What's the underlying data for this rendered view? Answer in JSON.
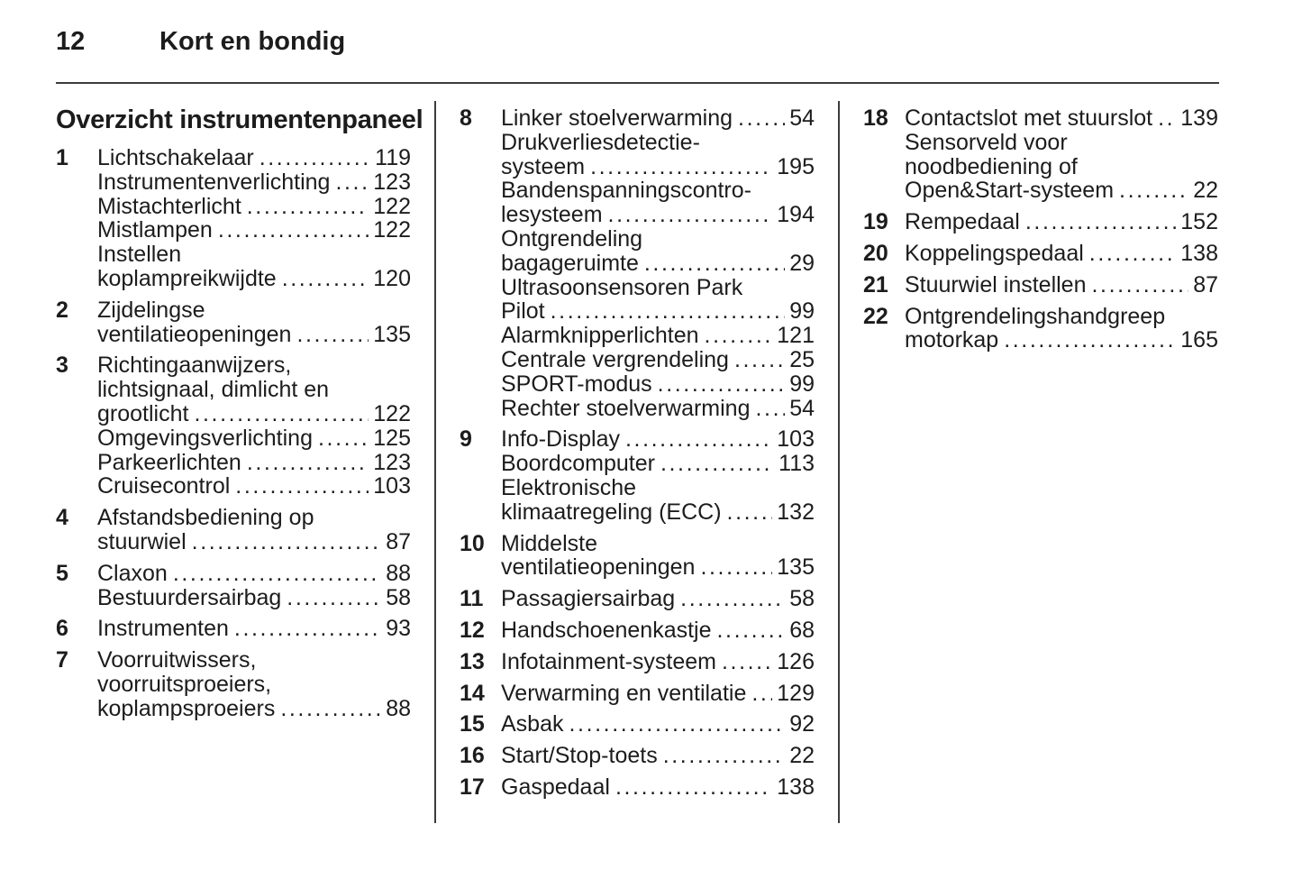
{
  "header": {
    "page_number": "12",
    "chapter_title": "Kort en bondig"
  },
  "colors": {
    "background": "#ffffff",
    "text": "#1c1c1c",
    "rule": "#3c3c3c"
  },
  "toc": {
    "heading": "Overzicht instrumentenpaneel",
    "columns": [
      {
        "items": [
          {
            "num": "1",
            "lines": [
              {
                "text": "Lichtschakelaar",
                "page": "119"
              },
              {
                "text": "Instrumentenverlichting",
                "page": "123"
              },
              {
                "text": "Mistachterlicht",
                "page": "122"
              },
              {
                "text": "Mistlampen",
                "page": "122"
              },
              {
                "text": "Instellen",
                "page": null
              },
              {
                "text": "koplampreikwijdte",
                "page": "120"
              }
            ]
          },
          {
            "num": "2",
            "lines": [
              {
                "text": "Zijdelingse",
                "page": null
              },
              {
                "text": "ventilatieopeningen",
                "page": "135"
              }
            ]
          },
          {
            "num": "3",
            "lines": [
              {
                "text": "Richtingaanwijzers,",
                "page": null
              },
              {
                "text": "lichtsignaal, dimlicht en",
                "page": null
              },
              {
                "text": "grootlicht",
                "page": "122"
              },
              {
                "text": "Omgevingsverlichting",
                "page": "125"
              },
              {
                "text": "Parkeerlichten",
                "page": "123"
              },
              {
                "text": "Cruisecontrol",
                "page": "103"
              }
            ]
          },
          {
            "num": "4",
            "lines": [
              {
                "text": "Afstandsbediening op",
                "page": null
              },
              {
                "text": "stuurwiel",
                "page": "87"
              }
            ]
          },
          {
            "num": "5",
            "lines": [
              {
                "text": "Claxon",
                "page": "88"
              },
              {
                "text": "Bestuurdersairbag",
                "page": "58"
              }
            ]
          },
          {
            "num": "6",
            "lines": [
              {
                "text": "Instrumenten",
                "page": "93"
              }
            ]
          },
          {
            "num": "7",
            "lines": [
              {
                "text": "Voorruitwissers,",
                "page": null
              },
              {
                "text": "voorruitsproeiers,",
                "page": null
              },
              {
                "text": "koplampsproeiers",
                "page": "88"
              }
            ]
          }
        ]
      },
      {
        "items": [
          {
            "num": "8",
            "lines": [
              {
                "text": "Linker stoelverwarming",
                "page": "54"
              },
              {
                "text": "Drukverliesdetectie-",
                "page": null
              },
              {
                "text": "systeem",
                "page": "195"
              },
              {
                "text": "Bandenspanningscontro-",
                "page": null
              },
              {
                "text": "lesysteem",
                "page": "194"
              },
              {
                "text": "Ontgrendeling",
                "page": null
              },
              {
                "text": "bagageruimte",
                "page": "29"
              },
              {
                "text": "Ultrasoonsensoren Park",
                "page": null
              },
              {
                "text": "Pilot",
                "page": "99"
              },
              {
                "text": "Alarmknipperlichten",
                "page": "121"
              },
              {
                "text": "Centrale vergrendeling",
                "page": "25"
              },
              {
                "text": "SPORT-modus",
                "page": "99"
              },
              {
                "text": "Rechter stoelverwarming",
                "page": "54"
              }
            ]
          },
          {
            "num": "9",
            "lines": [
              {
                "text": "Info-Display",
                "page": "103"
              },
              {
                "text": "Boordcomputer",
                "page": "113"
              },
              {
                "text": "Elektronische",
                "page": null
              },
              {
                "text": "klimaatregeling (ECC)",
                "page": "132"
              }
            ]
          },
          {
            "num": "10",
            "lines": [
              {
                "text": "Middelste",
                "page": null
              },
              {
                "text": "ventilatieopeningen",
                "page": "135"
              }
            ]
          },
          {
            "num": "11",
            "lines": [
              {
                "text": "Passagiersairbag",
                "page": "58"
              }
            ]
          },
          {
            "num": "12",
            "lines": [
              {
                "text": "Handschoenenkastje",
                "page": "68"
              }
            ]
          },
          {
            "num": "13",
            "lines": [
              {
                "text": "Infotainment-systeem",
                "page": "126"
              }
            ]
          },
          {
            "num": "14",
            "lines": [
              {
                "text": "Verwarming en ventilatie",
                "page": "129"
              }
            ]
          },
          {
            "num": "15",
            "lines": [
              {
                "text": "Asbak",
                "page": "92"
              }
            ]
          },
          {
            "num": "16",
            "lines": [
              {
                "text": "Start/Stop-toets",
                "page": "22"
              }
            ]
          },
          {
            "num": "17",
            "lines": [
              {
                "text": "Gaspedaal",
                "page": "138"
              }
            ]
          }
        ]
      },
      {
        "items": [
          {
            "num": "18",
            "lines": [
              {
                "text": "Contactslot met stuurslot",
                "page": "139"
              },
              {
                "text": "Sensorveld voor",
                "page": null
              },
              {
                "text": "noodbediening of",
                "page": null
              },
              {
                "text": "Open&Start-systeem",
                "page": "22"
              }
            ]
          },
          {
            "num": "19",
            "lines": [
              {
                "text": "Rempedaal",
                "page": "152"
              }
            ]
          },
          {
            "num": "20",
            "lines": [
              {
                "text": "Koppelingspedaal",
                "page": "138"
              }
            ]
          },
          {
            "num": "21",
            "lines": [
              {
                "text": "Stuurwiel instellen",
                "page": "87"
              }
            ]
          },
          {
            "num": "22",
            "lines": [
              {
                "text": "Ontgrendelingshandgreep",
                "page": null
              },
              {
                "text": "motorkap",
                "page": "165"
              }
            ]
          }
        ]
      }
    ]
  }
}
